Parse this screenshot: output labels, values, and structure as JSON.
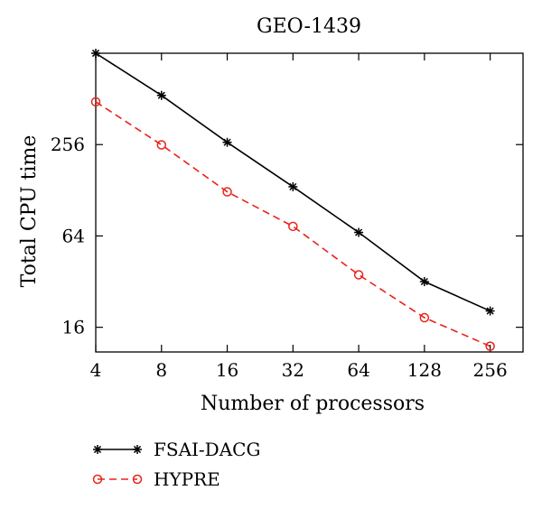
{
  "chart_data": {
    "type": "line",
    "title": "GEO-1439",
    "xlabel": "Number of processors",
    "ylabel": "Total CPU time",
    "x_scale": "log2",
    "y_scale": "log2",
    "x": [
      4,
      8,
      16,
      32,
      64,
      128,
      256
    ],
    "x_ticks": [
      "4",
      "8",
      "16",
      "32",
      "64",
      "128",
      "256"
    ],
    "y_ticks": [
      {
        "value": 16,
        "label": "16"
      },
      {
        "value": 64,
        "label": "64"
      },
      {
        "value": 256,
        "label": "256"
      }
    ],
    "xlim": [
      4,
      362
    ],
    "ylim": [
      11,
      1024
    ],
    "grid": false,
    "legend_position": "bottom-left",
    "series": [
      {
        "name": "FSAI-DACG",
        "color": "#000000",
        "line_style": "solid",
        "marker": "asterisk",
        "values": [
          1024,
          540,
          265,
          135,
          67.5,
          32,
          20.5
        ]
      },
      {
        "name": "HYPRE",
        "color": "#e8231c",
        "line_style": "dashed",
        "marker": "circle",
        "values": [
          490,
          255,
          125,
          74,
          35.5,
          18.5,
          12
        ]
      }
    ]
  }
}
